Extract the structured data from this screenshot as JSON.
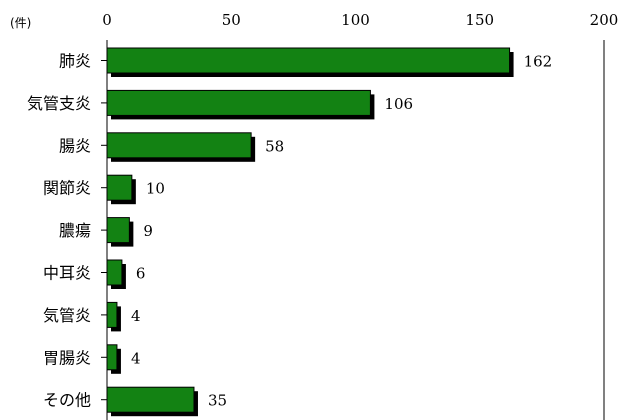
{
  "chart_data": {
    "type": "bar",
    "orientation": "horizontal",
    "unit_label": "(件)",
    "categories": [
      "肺炎",
      "気管支炎",
      "腸炎",
      "関節炎",
      "膿瘍",
      "中耳炎",
      "気管炎",
      "胃腸炎",
      "その他"
    ],
    "values": [
      162,
      106,
      58,
      10,
      9,
      6,
      4,
      4,
      35
    ],
    "xlim": [
      0,
      200
    ],
    "xticks": [
      0,
      50,
      100,
      150,
      200
    ],
    "axis_position": "top",
    "grid": false,
    "legend": "none",
    "colors": {
      "bar": "#138213",
      "bar_border": "#000000",
      "shadow": "#000000"
    }
  }
}
